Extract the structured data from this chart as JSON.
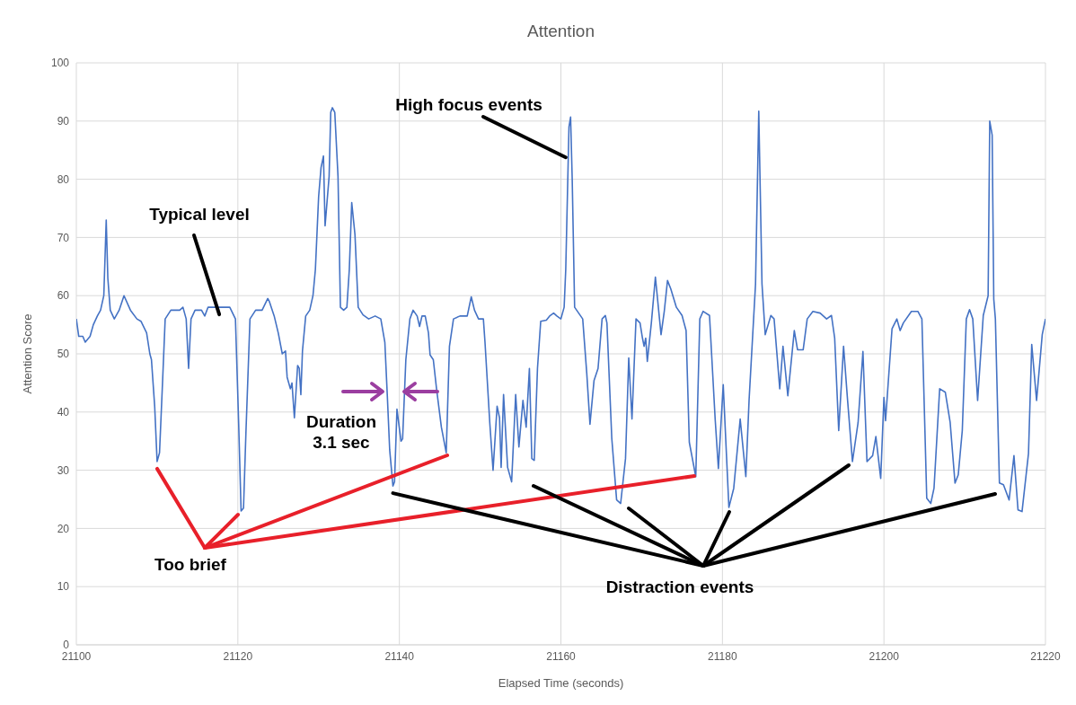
{
  "chart_data": {
    "type": "line",
    "title": "Attention",
    "xlabel": "Elapsed Time (seconds)",
    "ylabel": "Attention Score",
    "xlim": [
      21100,
      21220
    ],
    "xticks": [
      21100,
      21120,
      21140,
      21160,
      21180,
      21200,
      21220
    ],
    "ylim": [
      0,
      100
    ],
    "yticks": [
      0,
      10,
      20,
      30,
      40,
      50,
      60,
      70,
      80,
      90,
      100
    ],
    "grid": true,
    "line_style": "solid",
    "series": [
      {
        "color": "#4472c4",
        "x": [
          21100.0,
          21100.3,
          21100.8,
          21101.1,
          21101.7,
          21102.1,
          21102.6,
          21103.0,
          21103.4,
          21103.7,
          21103.9,
          21104.2,
          21104.7,
          21105.3,
          21105.9,
          21106.7,
          21107.5,
          21108.0,
          21108.7,
          21109.1,
          21109.3,
          21109.7,
          21110.0,
          21110.3,
          21110.7,
          21111.0,
          21111.7,
          21112.8,
          21113.2,
          21113.6,
          21113.9,
          21114.2,
          21114.7,
          21115.5,
          21115.9,
          21116.3,
          21117.7,
          21119.0,
          21119.7,
          21120.1,
          21120.4,
          21120.7,
          21121.0,
          21121.5,
          21122.2,
          21123.0,
          21123.7,
          21123.9,
          21124.5,
          21125.0,
          21125.5,
          21125.9,
          21126.1,
          21126.5,
          21126.7,
          21127.0,
          21127.4,
          21127.6,
          21127.8,
          21128.0,
          21128.4,
          21128.9,
          21129.3,
          21129.6,
          21130.0,
          21130.3,
          21130.6,
          21130.8,
          21131.3,
          21131.5,
          21131.7,
          21132.0,
          21132.4,
          21132.7,
          21133.1,
          21133.5,
          21133.8,
          21134.1,
          21134.5,
          21134.9,
          21135.5,
          21136.2,
          21137.0,
          21137.7,
          21138.2,
          21138.5,
          21138.8,
          21139.2,
          21139.4,
          21139.7,
          21140.2,
          21140.4,
          21140.8,
          21141.3,
          21141.7,
          21142.2,
          21142.5,
          21142.8,
          21143.2,
          21143.6,
          21143.8,
          21144.2,
          21144.6,
          21145.2,
          21145.8,
          21146.2,
          21146.7,
          21147.5,
          21148.4,
          21148.9,
          21149.3,
          21149.8,
          21150.4,
          21150.6,
          21151.2,
          21151.6,
          21152.1,
          21152.4,
          21152.6,
          21152.9,
          21153.4,
          21153.9,
          21154.4,
          21154.8,
          21155.3,
          21155.7,
          21156.1,
          21156.4,
          21156.7,
          21157.1,
          21157.5,
          21158.2,
          21158.6,
          21159.1,
          21159.5,
          21160.0,
          21160.4,
          21160.6,
          21161.0,
          21161.2,
          21161.4,
          21161.7,
          21162.7,
          21163.2,
          21163.6,
          21164.1,
          21164.6,
          21165.1,
          21165.5,
          21165.7,
          21166.3,
          21166.9,
          21167.4,
          21168.0,
          21168.4,
          21168.8,
          21169.3,
          21169.8,
          21170.1,
          21170.3,
          21170.5,
          21170.7,
          21171.2,
          21171.7,
          21172.4,
          21172.8,
          21173.2,
          21173.6,
          21174.3,
          21175.0,
          21175.5,
          21175.9,
          21176.7,
          21177.2,
          21177.6,
          21178.4,
          21179.1,
          21179.5,
          21180.1,
          21180.8,
          21181.4,
          21182.2,
          21182.9,
          21183.3,
          21184.1,
          21184.5,
          21184.9,
          21185.3,
          21186.0,
          21186.4,
          21187.1,
          21187.5,
          21188.1,
          21188.9,
          21189.3,
          21190.0,
          21190.5,
          21191.2,
          21192.1,
          21192.9,
          21193.5,
          21193.9,
          21194.4,
          21195.0,
          21195.5,
          21196.1,
          21196.8,
          21197.4,
          21197.9,
          21198.6,
          21199.0,
          21199.6,
          21200.0,
          21200.2,
          21201.0,
          21201.6,
          21202.0,
          21202.4,
          21203.4,
          21204.2,
          21204.7,
          21205.3,
          21205.8,
          21206.2,
          21206.9,
          21207.6,
          21208.2,
          21208.8,
          21209.2,
          21209.7,
          21210.2,
          21210.6,
          21211.0,
          21211.6,
          21212.3,
          21212.9,
          21213.1,
          21213.4,
          21213.6,
          21213.8,
          21214.3,
          21214.8,
          21215.5,
          21216.1,
          21216.6,
          21217.1,
          21217.9,
          21218.3,
          21218.9,
          21219.6,
          21220.0
        ],
        "values": [
          56,
          53,
          53,
          52,
          53,
          55,
          56.5,
          57.5,
          60,
          73,
          63,
          57.5,
          56,
          57.5,
          60,
          57.5,
          56,
          55.6,
          53.6,
          50,
          49,
          41,
          31.5,
          33,
          46,
          56,
          57.5,
          57.5,
          58,
          56,
          47.5,
          56,
          57.5,
          57.5,
          56.5,
          58,
          58,
          58,
          56,
          38,
          23,
          23.5,
          36.5,
          56,
          57.5,
          57.5,
          59.5,
          59,
          56.5,
          53.6,
          50,
          50.5,
          46,
          44,
          45,
          39,
          48,
          47.5,
          43,
          50.5,
          56.5,
          57.5,
          60,
          64.5,
          77,
          82,
          84,
          72,
          80.5,
          91.5,
          92.3,
          91.5,
          80.5,
          58,
          57.5,
          58,
          64.5,
          76,
          70.5,
          58,
          56.7,
          56,
          56.5,
          56,
          52,
          43,
          33.5,
          27.3,
          28,
          40.5,
          35,
          35.4,
          49,
          56,
          57.5,
          56.5,
          54.7,
          56.5,
          56.5,
          53.6,
          49.8,
          49,
          44,
          37.4,
          33,
          51.3,
          56,
          56.5,
          56.5,
          59.8,
          57.5,
          56,
          56,
          52,
          38,
          30,
          41,
          39,
          30.5,
          43,
          30.5,
          28,
          43,
          34,
          42,
          37.4,
          47.5,
          32,
          31.7,
          47.5,
          55.6,
          55.8,
          56.5,
          57,
          56.5,
          56,
          58,
          64.5,
          89,
          90.7,
          80,
          58,
          56,
          46.7,
          37.9,
          45.4,
          47.5,
          56,
          56.6,
          55.3,
          35.5,
          24.9,
          24.3,
          32,
          49.3,
          38.8,
          56,
          55.3,
          52.7,
          51.3,
          52.7,
          48.7,
          55.3,
          63.2,
          53.3,
          57.3,
          62.6,
          61.2,
          58,
          56.6,
          54,
          34.8,
          28.9,
          56,
          57.3,
          56.6,
          38.8,
          30.3,
          44.7,
          23.6,
          26.9,
          38.8,
          28.9,
          42,
          62,
          91.7,
          62,
          53.3,
          56.6,
          56,
          44,
          51.3,
          42.8,
          54,
          50.7,
          50.7,
          56,
          57.3,
          57,
          56,
          56.6,
          52.7,
          36.8,
          51.3,
          42,
          31.5,
          38.2,
          50.4,
          31.5,
          32.5,
          35.8,
          28.6,
          42.5,
          38.5,
          54.3,
          56,
          54,
          55.3,
          57.3,
          57.3,
          56,
          25.2,
          24.3,
          26.9,
          44,
          43.4,
          38.2,
          27.8,
          29.2,
          36.8,
          56,
          57.6,
          56,
          42,
          56.6,
          60,
          90,
          87.6,
          59.4,
          56,
          27.8,
          27.5,
          24.9,
          32.5,
          23.2,
          22.9,
          32.9,
          51.6,
          42,
          53.3,
          56
        ]
      }
    ],
    "annotations": [
      {
        "text": "Typical level",
        "x": 21117.7,
        "y": 58
      },
      {
        "text": "High focus events",
        "x": 21160.6,
        "y": 85
      },
      "Duration 3.1 sec",
      {
        "text": "Too brief",
        "x": 21110.0,
        "y": 31.5
      },
      {
        "text": "Distraction events",
        "x": 21139.2,
        "y": 27.3
      }
    ]
  }
}
